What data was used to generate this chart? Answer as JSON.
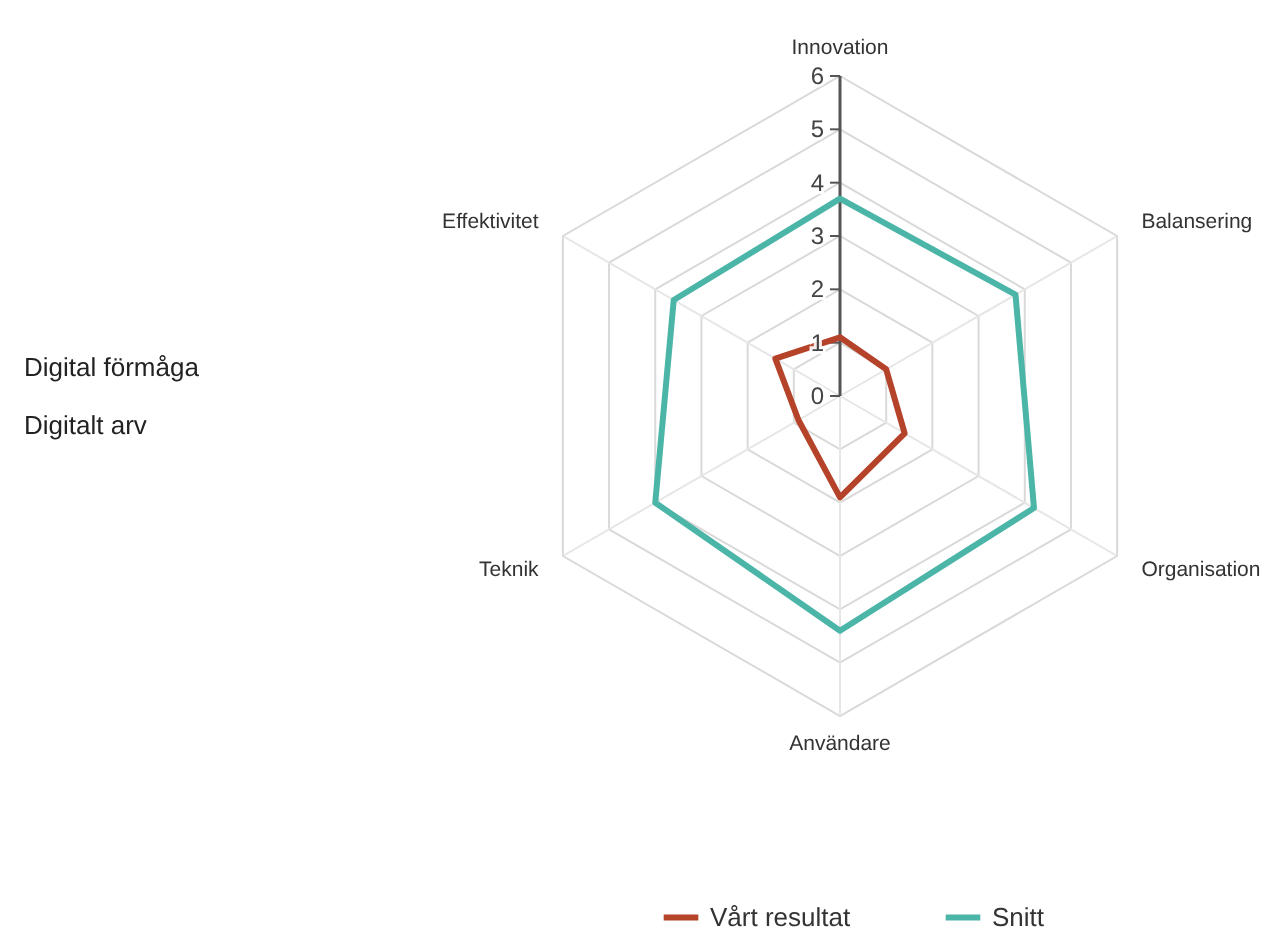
{
  "chart_data": {
    "type": "radar",
    "categories": [
      "Innovation",
      "Balansering",
      "Organisation",
      "Användare",
      "Teknik",
      "Effektivitet"
    ],
    "series": [
      {
        "name": "Vårt resultat",
        "color": "#b5432a",
        "values": [
          1.1,
          1.0,
          1.4,
          1.9,
          0.9,
          1.4
        ]
      },
      {
        "name": "Snitt",
        "color": "#4bb5a8",
        "values": [
          3.7,
          3.8,
          4.2,
          4.4,
          4.0,
          3.6
        ]
      }
    ],
    "ylim": [
      0,
      6
    ],
    "yticks": [
      0,
      1,
      2,
      3,
      4,
      5,
      6
    ],
    "grid": true,
    "legend": "bottom",
    "line_style": "solid",
    "marker": "none",
    "annotations": [
      "Digital förmåga",
      "Digitalt arv"
    ]
  }
}
